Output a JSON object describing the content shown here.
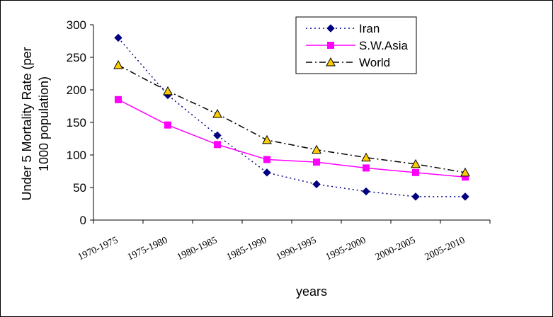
{
  "chart_data": {
    "type": "line",
    "categories": [
      "1970-1975",
      "1975-1980",
      "1980-1985",
      "1985-1990",
      "1990-1995",
      "1995-2000",
      "2000-2005",
      "2005-2010"
    ],
    "series": [
      {
        "name": "Iran",
        "values": [
          280,
          192,
          130,
          73,
          55,
          44,
          36,
          36
        ],
        "color": "#000080",
        "marker": "diamond",
        "dash": "dotted"
      },
      {
        "name": "S.W.Asia",
        "values": [
          185,
          146,
          116,
          93,
          89,
          80,
          73,
          66
        ],
        "color": "#ff00ff",
        "marker": "square",
        "dash": "solid"
      },
      {
        "name": "World",
        "values": [
          238,
          198,
          163,
          123,
          108,
          96,
          86,
          73
        ],
        "color": "#000000",
        "marker": "triangle",
        "dash": "dashdot"
      }
    ],
    "xlabel": "years",
    "ylabel_line1": "Under 5 Mortality Rate (per",
    "ylabel_line2": "1000 population)",
    "ylim": [
      0,
      300
    ],
    "yticks": [
      0,
      50,
      100,
      150,
      200,
      250,
      300
    ],
    "legend_position": "top-right",
    "grid": false
  }
}
